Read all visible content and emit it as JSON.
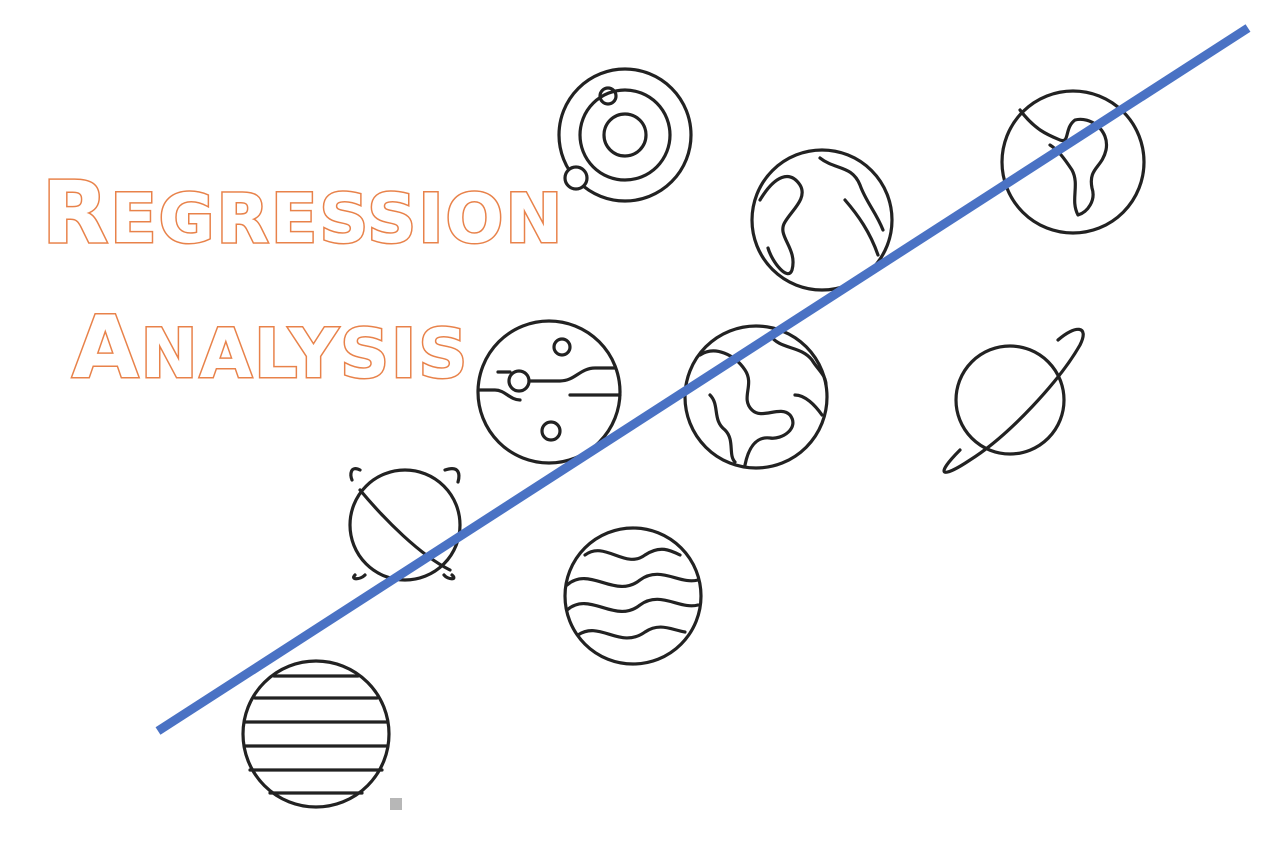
{
  "title": {
    "line1": {
      "first": "R",
      "rest": "EGRESSION"
    },
    "line2": {
      "first": "A",
      "rest": "NALYSIS"
    }
  },
  "colors": {
    "title_stroke": "#e8824a",
    "regression_line": "#4a72c4",
    "icon_stroke": "#222222"
  },
  "icons": [
    "solar-system-icon",
    "earth-globe-icon",
    "earth-globe-icon",
    "circuit-planet-icon",
    "earth-globe-icon",
    "ringed-planet-icon",
    "orbit-planet-icon",
    "wavy-planet-icon",
    "striped-planet-icon"
  ]
}
